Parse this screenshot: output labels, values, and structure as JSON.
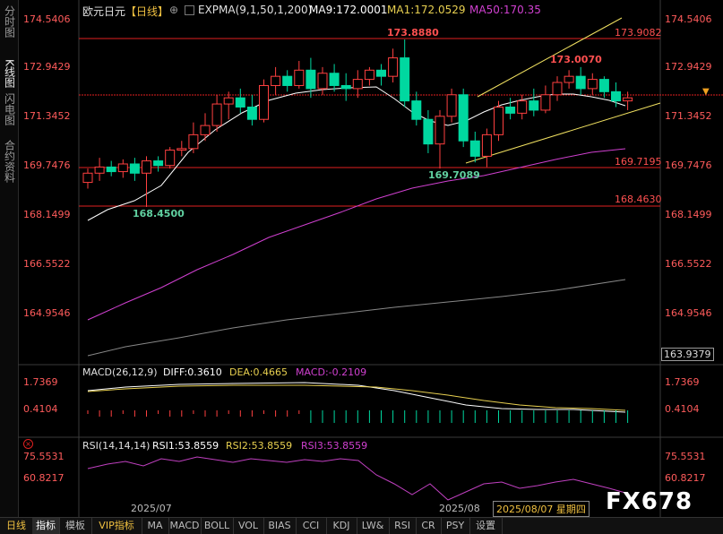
{
  "sidebar": {
    "tabs": [
      {
        "label": "分时图",
        "active": false
      },
      {
        "label": "K线图",
        "active": true
      },
      {
        "label": "闪电图",
        "active": false
      },
      {
        "label": "合约资料",
        "active": false
      }
    ]
  },
  "header": {
    "symbol": "欧元日元",
    "period": "【日线】",
    "indicator_name": "EXPMA(9,1,50,1,200)",
    "ma9": "MA9:172.0001",
    "ma1": "MA1:172.0529",
    "ma50": "MA50:170.35"
  },
  "price_axis": {
    "left_labels": [
      "174.5406",
      "172.9429",
      "171.3452",
      "169.7476",
      "168.1499",
      "166.5522",
      "164.9546"
    ],
    "right_labels": [
      "174.5406",
      "172.9429",
      "171.3452",
      "169.7476",
      "168.1499",
      "166.5522",
      "164.9546"
    ],
    "right_box_label": "163.9379"
  },
  "levels": {
    "high_label": "173.8880",
    "right_top": "173.9082",
    "right_mid": "169.7195",
    "right_low": "168.4630",
    "peak_label": "173.0070",
    "swing_low_label": "169.7089",
    "low_label": "168.4500"
  },
  "macd_panel": {
    "title": "MACD(26,12,9)",
    "diff": "DIFF:0.3610",
    "dea": "DEA:0.4665",
    "macd": "MACD:-0.2109",
    "left_labels": [
      "1.7369",
      "0.4104"
    ],
    "right_labels": [
      "1.7369",
      "0.4104"
    ]
  },
  "rsi_panel": {
    "title": "RSI(14,14,14)",
    "rsi1": "RSI1:53.8559",
    "rsi2": "RSI2:53.8559",
    "rsi3": "RSI3:53.8559",
    "left_labels": [
      "75.5531",
      "60.8217"
    ],
    "right_labels": [
      "75.5531",
      "60.8217"
    ]
  },
  "dates": {
    "d1": "2025/07",
    "d2": "2025/08",
    "cursor": "2025/08/07 星期四"
  },
  "bottom_tabs": [
    {
      "label": "日线",
      "active": false,
      "style": "period"
    },
    {
      "label": "指标",
      "active": true,
      "style": "normal"
    },
    {
      "label": "模板",
      "active": false,
      "style": "normal"
    },
    {
      "label": "VIP指标",
      "active": false,
      "style": "vip"
    },
    {
      "label": "MA",
      "active": false,
      "style": "normal"
    },
    {
      "label": "MACD",
      "active": false,
      "style": "normal"
    },
    {
      "label": "BOLL",
      "active": false,
      "style": "normal"
    },
    {
      "label": "VOL",
      "active": false,
      "style": "normal"
    },
    {
      "label": "BIAS",
      "active": false,
      "style": "normal"
    },
    {
      "label": "CCI",
      "active": false,
      "style": "normal"
    },
    {
      "label": "KDJ",
      "active": false,
      "style": "normal"
    },
    {
      "label": "LW&",
      "active": false,
      "style": "normal"
    },
    {
      "label": "RSI",
      "active": false,
      "style": "normal"
    },
    {
      "label": "CR",
      "active": false,
      "style": "normal"
    },
    {
      "label": "PSY",
      "active": false,
      "style": "normal"
    },
    {
      "label": "设置",
      "active": false,
      "style": "normal"
    }
  ],
  "watermark": "FX678",
  "colors": {
    "up": "#ff4040",
    "down": "#00d8a0",
    "ma9": "#ffffff",
    "ma1": "#e8d050",
    "ma50": "#d040d0",
    "ma200": "#888888",
    "level": "#e02020",
    "trend": "#f0e060",
    "dea": "#e8d050",
    "diff": "#ffffff",
    "rsi": "#c040c0"
  },
  "chart_data": {
    "type": "candlestick",
    "candles": [
      [
        169.25,
        169.55,
        169.05,
        169.7
      ],
      [
        169.55,
        169.75,
        169.3,
        170.05
      ],
      [
        169.75,
        169.6,
        169.45,
        169.95
      ],
      [
        169.6,
        169.85,
        169.4,
        170.0
      ],
      [
        169.85,
        169.55,
        169.3,
        170.05
      ],
      [
        169.55,
        169.95,
        168.45,
        170.1
      ],
      [
        169.95,
        169.8,
        169.6,
        170.1
      ],
      [
        169.8,
        170.3,
        169.7,
        170.4
      ],
      [
        170.3,
        170.35,
        170.1,
        170.6
      ],
      [
        170.35,
        170.8,
        170.2,
        171.2
      ],
      [
        170.8,
        171.1,
        170.6,
        171.5
      ],
      [
        171.1,
        171.8,
        170.9,
        172.1
      ],
      [
        171.8,
        172.0,
        171.3,
        172.2
      ],
      [
        172.0,
        171.7,
        171.5,
        172.3
      ],
      [
        171.7,
        171.3,
        171.1,
        172.1
      ],
      [
        171.3,
        172.4,
        171.2,
        172.6
      ],
      [
        172.4,
        172.7,
        172.1,
        173.0
      ],
      [
        172.7,
        172.4,
        172.2,
        172.9
      ],
      [
        172.4,
        172.9,
        172.3,
        173.2
      ],
      [
        172.9,
        172.3,
        172.0,
        173.3
      ],
      [
        172.3,
        172.8,
        172.1,
        173.0
      ],
      [
        172.8,
        172.4,
        172.2,
        173.1
      ],
      [
        172.4,
        172.3,
        171.9,
        172.8
      ],
      [
        172.3,
        172.6,
        172.0,
        172.9
      ],
      [
        172.6,
        172.9,
        172.4,
        173.0
      ],
      [
        172.9,
        172.7,
        172.4,
        173.1
      ],
      [
        172.7,
        173.3,
        172.5,
        173.6
      ],
      [
        173.3,
        171.9,
        171.7,
        173.9
      ],
      [
        171.9,
        171.3,
        171.1,
        172.2
      ],
      [
        171.3,
        170.5,
        170.2,
        171.6
      ],
      [
        170.5,
        171.4,
        169.7,
        171.6
      ],
      [
        171.4,
        172.1,
        171.2,
        172.3
      ],
      [
        172.1,
        170.6,
        170.4,
        172.3
      ],
      [
        170.6,
        170.1,
        169.9,
        170.9
      ],
      [
        170.1,
        170.8,
        169.75,
        171.0
      ],
      [
        170.8,
        171.7,
        170.6,
        171.9
      ],
      [
        171.7,
        171.5,
        171.3,
        172.0
      ],
      [
        171.5,
        171.9,
        171.3,
        172.1
      ],
      [
        171.9,
        171.6,
        171.4,
        172.3
      ],
      [
        171.6,
        172.1,
        171.5,
        172.4
      ],
      [
        172.1,
        172.5,
        171.9,
        172.7
      ],
      [
        172.5,
        172.7,
        172.3,
        172.9
      ],
      [
        172.7,
        172.3,
        172.1,
        173.0
      ],
      [
        172.3,
        172.6,
        172.1,
        172.8
      ],
      [
        172.6,
        172.2,
        172.0,
        172.7
      ],
      [
        172.2,
        171.9,
        171.7,
        172.5
      ],
      [
        171.9,
        172.0,
        171.6,
        172.2
      ]
    ],
    "ylim": [
      163.9379,
      175.2
    ]
  }
}
